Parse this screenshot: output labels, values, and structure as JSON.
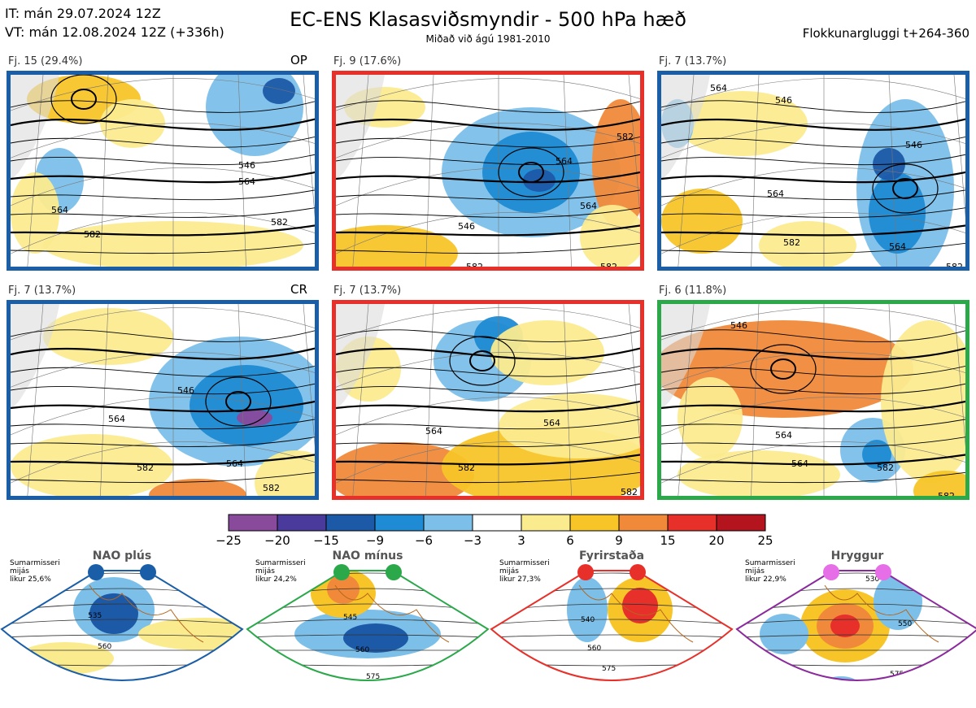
{
  "header": {
    "it_line": "IT: mán 29.07.2024 12Z",
    "vt_line": "VT: mán 12.08.2024 12Z  (+336h)",
    "title": "EC-ENS Klasasviðsmyndir - 500 hPa hæð",
    "subtitle": "Miðað við ágú 1981-2010",
    "window": "Flokkunargluggi t+264-360"
  },
  "clusters": [
    {
      "label": "Fj. 15 (29.4%)",
      "tag": "OP",
      "border_color": "#1a5ea8",
      "contours": [
        "546",
        "564",
        "582",
        "564",
        "582"
      ]
    },
    {
      "label": "Fj. 9 (17.6%)",
      "tag": "",
      "border_color": "#e8302a",
      "contours": [
        "564",
        "546",
        "564",
        "582",
        "582",
        "582"
      ]
    },
    {
      "label": "Fj. 7 (13.7%)",
      "tag": "",
      "border_color": "#1a5ea8",
      "contours": [
        "564",
        "546",
        "546",
        "564",
        "582",
        "564",
        "582"
      ]
    },
    {
      "label": "Fj. 7 (13.7%)",
      "tag": "CR",
      "border_color": "#1a5ea8",
      "contours": [
        "546",
        "564",
        "564",
        "582",
        "582"
      ]
    },
    {
      "label": "Fj. 7 (13.7%)",
      "tag": "",
      "border_color": "#e8302a",
      "contours": [
        "564",
        "564",
        "582",
        "582"
      ]
    },
    {
      "label": "Fj. 6 (11.8%)",
      "tag": "",
      "border_color": "#2aa84a",
      "contours": [
        "546",
        "564",
        "582",
        "564",
        "582"
      ]
    }
  ],
  "colorbar": {
    "ticks": [
      "−25",
      "−20",
      "−15",
      "−9",
      "−6",
      "−3",
      "3",
      "6",
      "9",
      "15",
      "20",
      "25"
    ],
    "colors": [
      "#8a4a9c",
      "#4a3a9c",
      "#1c5aa8",
      "#1f8bd4",
      "#7cc0ea",
      "#ffffff",
      "#fbeb8f",
      "#f7c528",
      "#f08a3a",
      "#e8302a",
      "#b4141e"
    ]
  },
  "regimes": [
    {
      "name": "NAO plús",
      "info": [
        "Sumarmisseri",
        "mijás",
        "likur 25,6%"
      ],
      "color": "#1a5ea8",
      "dot_color": "#1a5ea8",
      "contours": [
        "535",
        "560"
      ]
    },
    {
      "name": "NAO mínus",
      "info": [
        "Sumarmisseri",
        "mijás",
        "likur 24,2%"
      ],
      "color": "#2aa84a",
      "dot_color": "#2aa84a",
      "contours": [
        "545",
        "560",
        "575"
      ]
    },
    {
      "name": "Fyrirstaða",
      "info": [
        "Sumarmisseri",
        "mijás",
        "likur 27,3%"
      ],
      "color": "#e8302a",
      "dot_color": "#e8302a",
      "contours": [
        "540",
        "560",
        "575"
      ]
    },
    {
      "name": "Hryggur",
      "info": [
        "Sumarmisseri",
        "mijás",
        "likur 22,9%"
      ],
      "color": "#8a2a9c",
      "dot_color": "#e66ee6",
      "contours": [
        "530",
        "550",
        "575"
      ]
    }
  ]
}
